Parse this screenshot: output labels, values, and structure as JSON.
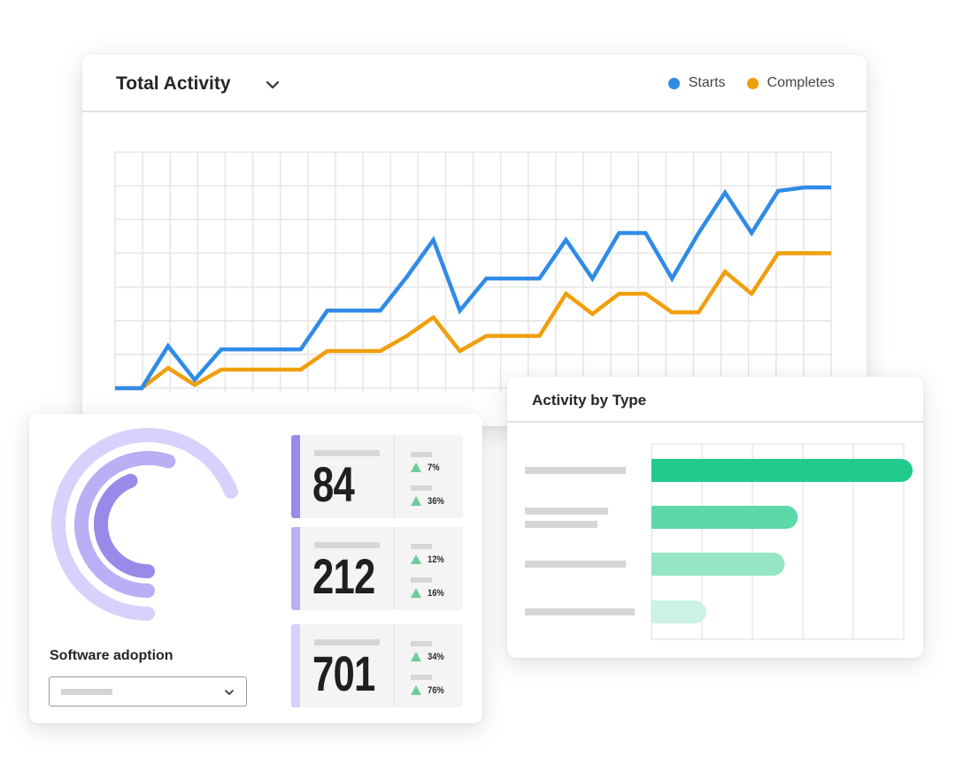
{
  "total_activity": {
    "title": "Total Activity",
    "legend": [
      {
        "label": "Starts",
        "color": "#2f8be6"
      },
      {
        "label": "Completes",
        "color": "#f09f0c"
      }
    ]
  },
  "chart_data": [
    {
      "type": "line",
      "title": "Total Activity",
      "grid": true,
      "legend_placement": "top-right",
      "x": [
        1,
        2,
        3,
        4,
        5,
        6,
        7,
        8,
        9,
        10,
        11,
        12,
        13,
        14,
        15,
        16,
        17,
        18,
        19,
        20,
        21,
        22,
        23,
        24,
        25,
        26,
        27,
        28
      ],
      "ylim": [
        0,
        7
      ],
      "series": [
        {
          "name": "Starts",
          "color": "#2f8be6",
          "values": [
            0,
            0,
            1.25,
            0.25,
            1.15,
            1.15,
            1.15,
            1.15,
            2.3,
            2.3,
            2.3,
            3.3,
            4.4,
            2.3,
            3.25,
            3.25,
            3.25,
            4.4,
            3.25,
            4.6,
            4.6,
            3.25,
            4.6,
            5.8,
            4.6,
            5.85,
            5.95,
            5.95
          ]
        },
        {
          "name": "Completes",
          "color": "#f09f0c",
          "values": [
            0,
            0,
            0.6,
            0.1,
            0.55,
            0.55,
            0.55,
            0.55,
            1.1,
            1.1,
            1.1,
            1.55,
            2.1,
            1.1,
            1.55,
            1.55,
            1.55,
            2.8,
            2.2,
            2.8,
            2.8,
            2.25,
            2.25,
            3.45,
            2.8,
            4.0,
            4.0,
            4.0
          ]
        }
      ]
    },
    {
      "type": "bar",
      "title": "Activity by Type",
      "orientation": "horizontal",
      "categories": [
        "",
        "",
        "",
        ""
      ],
      "values": [
        100,
        56,
        51,
        21
      ],
      "colors": [
        "#22cb8d",
        "#5dd8a9",
        "#96e5c7",
        "#cbf2e2"
      ],
      "xlim": [
        0,
        100
      ],
      "grid": true
    },
    {
      "type": "radial-bar",
      "title": "Software adoption",
      "values": [
        69,
        55,
        44
      ],
      "colors": [
        "#d7d1fb",
        "#b9aff5",
        "#9b89ea"
      ]
    }
  ],
  "software_adoption": {
    "title": "Software adoption",
    "select_value": "",
    "stats": [
      {
        "value": "84",
        "bar_color": "#9b89ea",
        "changes": [
          "7%",
          "36%"
        ]
      },
      {
        "value": "212",
        "bar_color": "#b9aff5",
        "changes": [
          "12%",
          "16%"
        ]
      },
      {
        "value": "701",
        "bar_color": "#d7d1fb",
        "changes": [
          "34%",
          "76%"
        ]
      }
    ]
  },
  "activity_by_type": {
    "title": "Activity by Type"
  }
}
